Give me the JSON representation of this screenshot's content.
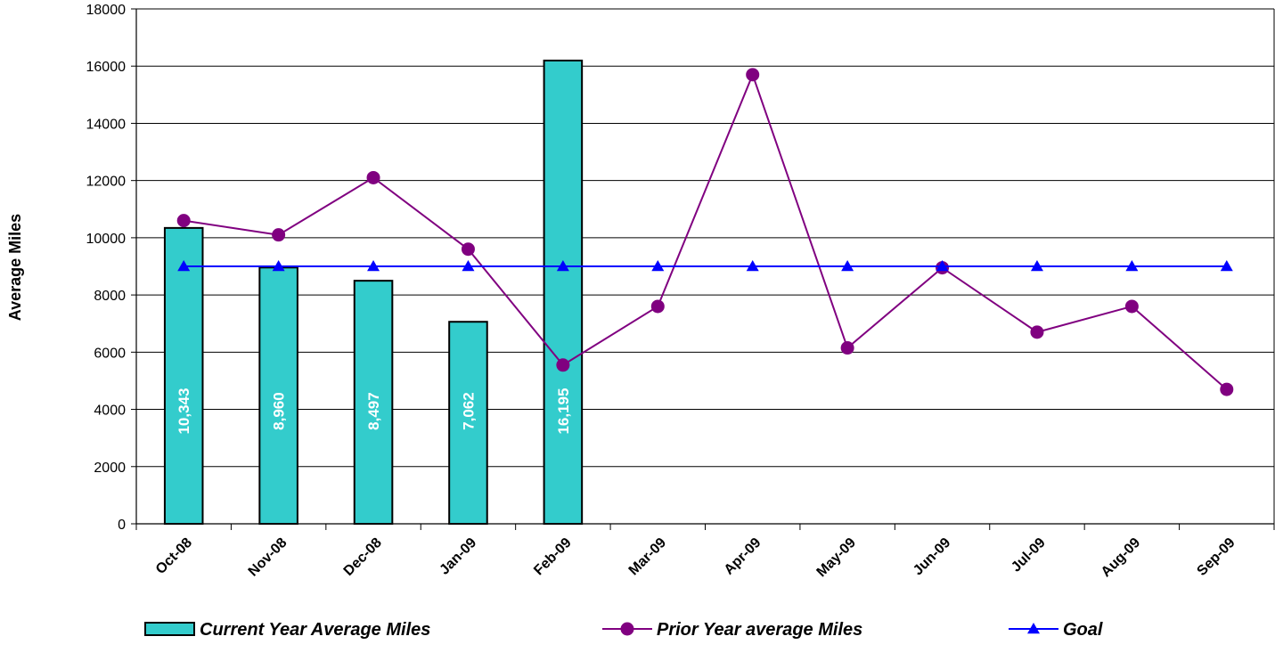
{
  "chart_data": {
    "type": "bar",
    "categories": [
      "Oct-08",
      "Nov-08",
      "Dec-08",
      "Jan-09",
      "Feb-09",
      "Mar-09",
      "Apr-09",
      "May-09",
      "Jun-09",
      "Jul-09",
      "Aug-09",
      "Sep-09"
    ],
    "ylabel": "Average Miles",
    "xlabel": "",
    "ylim": [
      0,
      18000
    ],
    "yticks": [
      0,
      2000,
      4000,
      6000,
      8000,
      10000,
      12000,
      14000,
      16000,
      18000
    ],
    "grid": true,
    "legend_position": "bottom",
    "series": [
      {
        "name": "Current Year Average Miles",
        "type": "bar",
        "color": "#33CCCC",
        "values": [
          10343,
          8960,
          8497,
          7062,
          16195,
          null,
          null,
          null,
          null,
          null,
          null,
          null
        ],
        "labels": [
          "10,343",
          "8,960",
          "8,497",
          "7,062",
          "16,195",
          null,
          null,
          null,
          null,
          null,
          null,
          null
        ]
      },
      {
        "name": "Prior Year average Miles",
        "type": "line",
        "marker": "circle",
        "color": "#800080",
        "values": [
          10600,
          10100,
          12100,
          9600,
          5550,
          7600,
          15700,
          6150,
          8950,
          6700,
          7600,
          4700
        ]
      },
      {
        "name": "Goal",
        "type": "line",
        "marker": "triangle",
        "color": "#0000FF",
        "values": [
          9000,
          9000,
          9000,
          9000,
          9000,
          9000,
          9000,
          9000,
          9000,
          9000,
          9000,
          9000
        ]
      }
    ]
  }
}
